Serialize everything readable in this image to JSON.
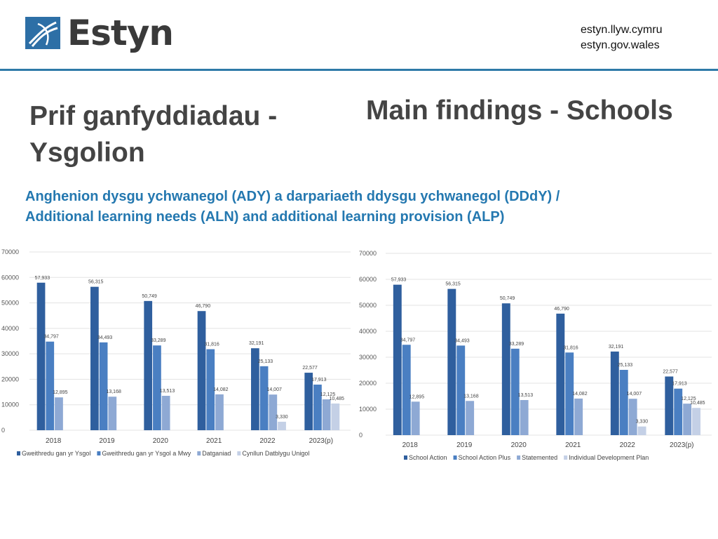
{
  "header": {
    "logo_text": "Estyn",
    "url_cy": "estyn.llyw.cymru",
    "url_en": "estyn.gov.wales"
  },
  "title_cy": "Prif ganfyddiadau - Ysgolion",
  "title_en": "Main findings - Schools",
  "subtitle": {
    "line1": "Anghenion dysgu ychwanegol (ADY) a darpariaeth ddysgu ychwanegol (DDdY) /",
    "line2": "Additional learning needs (ALN) and additional learning provision (ALP)"
  },
  "colors": {
    "accent_blue": "#2478b0",
    "rule": "#2e7aa8",
    "series": [
      "#2f5f9e",
      "#4a7fc2",
      "#8ea9d4",
      "#c4d0e6"
    ]
  },
  "chart_data": [
    {
      "type": "bar",
      "categories": [
        "2018",
        "2019",
        "2020",
        "2021",
        "2022",
        "2023(p)"
      ],
      "series": [
        {
          "name": "Gweithredu gan yr Ysgol",
          "values": [
            57933,
            56315,
            50749,
            46790,
            32191,
            22577
          ],
          "labels": [
            "57,933",
            "56,315",
            "50,749",
            "46,790",
            "32,191",
            "22,577"
          ]
        },
        {
          "name": "Gweithredu gan yr Ysgol a Mwy",
          "values": [
            34797,
            34493,
            33289,
            31816,
            25133,
            17913
          ],
          "labels": [
            "34,797",
            "34,493",
            "33,289",
            "31,816",
            "25,133",
            "17,913"
          ]
        },
        {
          "name": "Datganiad",
          "values": [
            12895,
            13168,
            13513,
            14082,
            14007,
            12125
          ],
          "labels": [
            "12,895",
            "13,168",
            "13,513",
            "14,082",
            "14,007",
            "12,125"
          ]
        },
        {
          "name": "Cynllun Datblygu Unigol",
          "values": [
            null,
            null,
            null,
            null,
            3330,
            10485
          ],
          "labels": [
            "",
            "",
            "",
            "",
            "3,330",
            "10,485"
          ]
        }
      ],
      "ylim": [
        0,
        70000
      ],
      "yticks": [
        "0",
        "10000",
        "20000",
        "30000",
        "40000",
        "50000",
        "60000",
        "70000"
      ],
      "grid": true,
      "legend_position": "bottom"
    },
    {
      "type": "bar",
      "categories": [
        "2018",
        "2019",
        "2020",
        "2021",
        "2022",
        "2023(p)"
      ],
      "series": [
        {
          "name": "School Action",
          "values": [
            57933,
            56315,
            50749,
            46790,
            32191,
            22577
          ],
          "labels": [
            "57,933",
            "56,315",
            "50,749",
            "46,790",
            "32,191",
            "22,577"
          ]
        },
        {
          "name": "School Action Plus",
          "values": [
            34797,
            34493,
            33289,
            31816,
            25133,
            17913
          ],
          "labels": [
            "34,797",
            "34,493",
            "33,289",
            "31,816",
            "25,133",
            "17,913"
          ]
        },
        {
          "name": "Statemented",
          "values": [
            12895,
            13168,
            13513,
            14082,
            14007,
            12125
          ],
          "labels": [
            "12,895",
            "13,168",
            "13,513",
            "14,082",
            "14,007",
            "12,125"
          ]
        },
        {
          "name": "Individual Development Plan",
          "values": [
            null,
            null,
            null,
            null,
            3330,
            10485
          ],
          "labels": [
            "",
            "",
            "",
            "",
            "3,330",
            "10,485"
          ]
        }
      ],
      "ylim": [
        0,
        70000
      ],
      "yticks": [
        "0",
        "10000",
        "20000",
        "30000",
        "40000",
        "50000",
        "60000",
        "70000"
      ],
      "grid": true,
      "legend_position": "bottom"
    }
  ]
}
